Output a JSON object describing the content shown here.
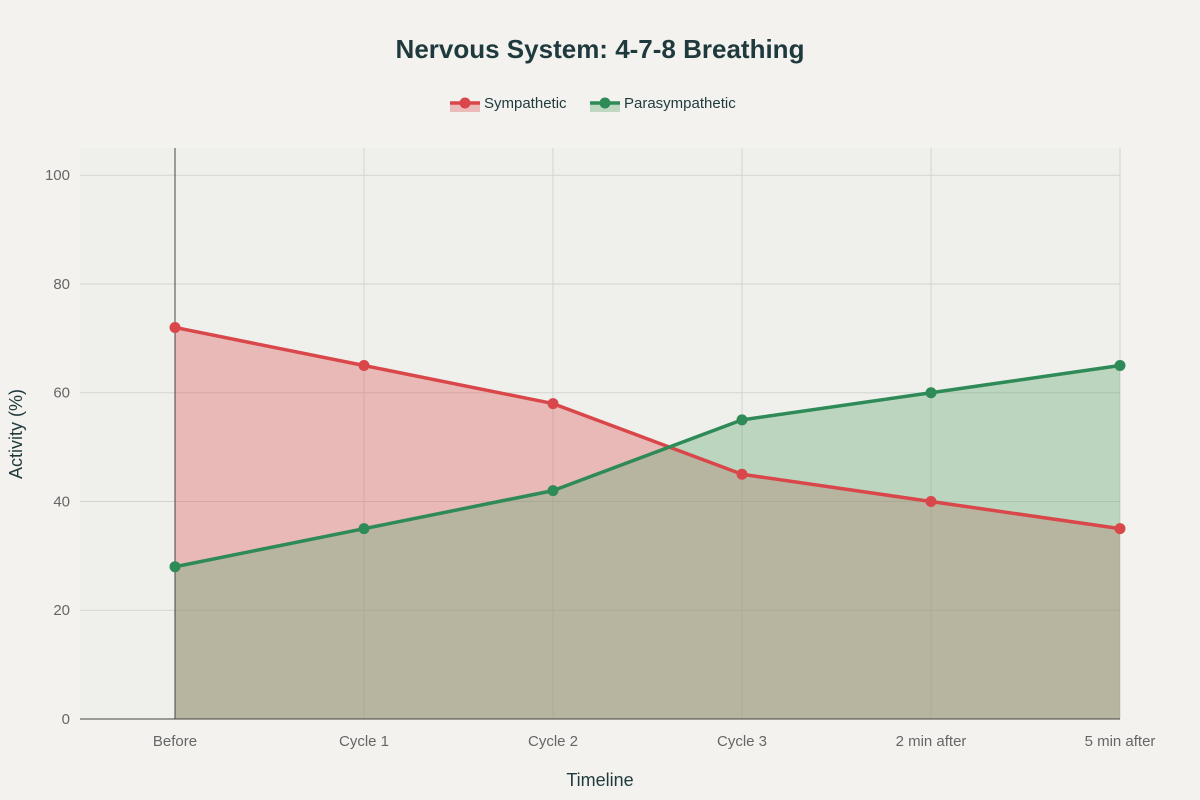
{
  "chart_data": {
    "type": "area",
    "title": "Nervous System: 4-7-8 Breathing",
    "xlabel": "Timeline",
    "ylabel": "Activity (%)",
    "categories": [
      "Before",
      "Cycle 1",
      "Cycle 2",
      "Cycle 3",
      "2 min after",
      "5 min after"
    ],
    "ylim": [
      0,
      105
    ],
    "yticks": [
      0,
      20,
      40,
      60,
      80,
      100
    ],
    "grid": true,
    "legend_position": "top-center",
    "series": [
      {
        "name": "Sympathetic",
        "values": [
          72,
          65,
          58,
          45,
          40,
          35
        ],
        "color": "#d9474a",
        "fill": "rgba(222,85,85,0.35)"
      },
      {
        "name": "Parasympathetic",
        "values": [
          28,
          35,
          42,
          55,
          60,
          65
        ],
        "color": "#2e8a57",
        "fill": "rgba(110,175,125,0.40)"
      }
    ]
  }
}
